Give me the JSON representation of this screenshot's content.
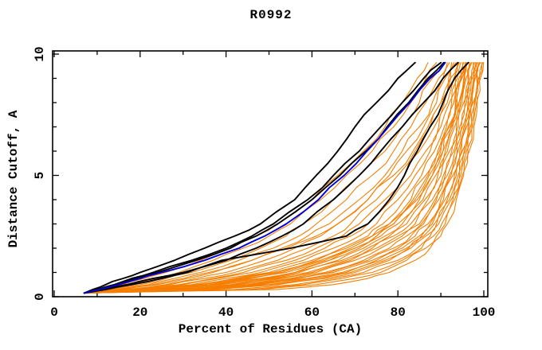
{
  "chart_data": {
    "type": "line",
    "title": "R0992",
    "xlabel": "Percent of Residues (CA)",
    "ylabel": "Distance Cutoff, A",
    "xlim": [
      0,
      101
    ],
    "ylim": [
      0,
      10.1
    ],
    "x_major_ticks": [
      0,
      20,
      40,
      60,
      80,
      100
    ],
    "x_minor_ticks": [
      10,
      30,
      50,
      70,
      90
    ],
    "y_major_ticks": [
      0,
      5,
      10
    ],
    "y_minor_ticks": [
      1,
      2,
      3,
      4,
      6,
      7,
      8,
      9
    ],
    "grid": false,
    "legend": "none",
    "axis_color": "#000000",
    "series_colors": {
      "orange": "#f57e00",
      "black": "#000000",
      "blue": "#0000dd"
    },
    "cutoffs": [
      0.15,
      0.3,
      0.5,
      0.75,
      1,
      1.5,
      2,
      2.5,
      3,
      4,
      5,
      6,
      7,
      8,
      9,
      9.65
    ],
    "series": [
      {
        "group": "orange",
        "values": [
          7,
          11,
          16,
          21,
          26,
          34,
          41,
          47,
          52,
          60,
          66,
          72,
          77,
          81,
          84.5,
          87
        ]
      },
      {
        "group": "orange",
        "values": [
          7,
          12,
          18,
          24,
          29,
          37,
          44,
          50,
          55,
          62,
          68,
          74,
          79,
          83,
          86.5,
          89
        ]
      },
      {
        "group": "orange",
        "values": [
          7,
          13,
          20,
          26,
          32,
          41,
          48,
          54,
          58,
          65,
          71,
          77,
          81,
          85,
          88,
          90.5
        ]
      },
      {
        "group": "orange",
        "values": [
          7,
          14,
          22,
          28,
          34,
          43,
          51,
          57,
          61,
          68,
          74,
          79,
          83,
          86.5,
          89.5,
          91.5
        ]
      },
      {
        "group": "orange",
        "values": [
          7,
          16,
          24,
          31,
          37,
          46,
          53,
          59,
          64,
          71,
          77,
          81,
          85,
          88,
          90.5,
          92
        ]
      },
      {
        "group": "orange",
        "values": [
          7,
          17,
          26,
          33,
          40,
          49,
          56,
          62,
          66,
          73,
          78,
          82,
          86,
          89,
          91,
          92.5
        ]
      },
      {
        "group": "orange",
        "values": [
          7,
          18,
          27,
          35,
          42,
          52,
          59,
          65,
          69,
          75,
          80,
          84,
          87.5,
          90,
          91.8,
          93
        ]
      },
      {
        "group": "orange",
        "values": [
          7,
          19,
          29,
          37,
          44,
          54,
          61,
          67,
          71,
          77,
          81.5,
          85,
          88.5,
          90.8,
          92.3,
          93.5
        ]
      },
      {
        "group": "orange",
        "values": [
          7,
          20,
          30,
          38,
          46,
          56,
          63,
          69,
          73,
          78.5,
          83,
          86.5,
          89.5,
          91.5,
          93,
          94
        ]
      },
      {
        "group": "orange",
        "values": [
          7,
          21,
          32,
          40,
          48,
          58,
          65,
          71,
          75,
          80,
          84,
          87.5,
          90,
          92,
          93.4,
          94.3
        ]
      },
      {
        "group": "orange",
        "values": [
          7,
          22,
          33,
          42,
          50,
          60,
          67,
          73,
          76.5,
          81.5,
          85.5,
          88.5,
          90.8,
          92.5,
          93.8,
          94.6
        ]
      },
      {
        "group": "orange",
        "values": [
          7,
          23,
          34,
          43,
          51,
          61,
          68,
          74,
          78,
          83,
          86.5,
          89.3,
          91.3,
          93,
          94.2,
          95
        ]
      },
      {
        "group": "orange",
        "values": [
          7,
          24,
          36,
          45,
          53,
          63,
          70,
          75,
          79,
          84,
          87.3,
          90,
          92,
          93.5,
          94.6,
          95.3
        ]
      },
      {
        "group": "orange",
        "values": [
          7,
          25,
          37,
          46,
          54,
          64,
          71,
          76,
          80,
          85,
          88,
          90.5,
          92.3,
          93.8,
          94.9,
          95.6
        ]
      },
      {
        "group": "orange",
        "values": [
          7,
          26,
          38,
          48,
          56,
          66,
          72,
          77,
          81,
          85.8,
          88.8,
          91,
          92.8,
          94.2,
          95.3,
          96
        ]
      },
      {
        "group": "orange",
        "values": [
          7,
          27,
          39,
          49,
          57,
          67,
          73,
          78,
          82,
          86.3,
          89.3,
          91.5,
          93.2,
          94.5,
          95.6,
          96.3
        ]
      },
      {
        "group": "orange",
        "values": [
          7,
          28,
          41,
          51,
          59,
          68,
          74,
          79,
          83,
          87,
          90,
          92,
          93.6,
          94.9,
          95.9,
          96.6
        ]
      },
      {
        "group": "orange",
        "values": [
          7,
          29,
          42,
          52,
          60,
          69,
          75,
          80,
          84,
          88,
          90.6,
          92.5,
          94,
          95.3,
          96.3,
          97
        ]
      },
      {
        "group": "orange",
        "values": [
          7,
          30,
          43,
          53,
          61,
          70,
          76,
          81,
          85,
          88.6,
          91,
          93,
          94.4,
          95.6,
          96.5,
          97.2
        ]
      },
      {
        "group": "orange",
        "values": [
          7,
          31,
          45,
          55,
          63,
          72,
          78,
          82,
          85.5,
          89,
          91.5,
          93.3,
          94.8,
          96,
          96.8,
          97.5
        ]
      },
      {
        "group": "orange",
        "values": [
          7,
          32,
          46,
          56,
          64,
          73,
          79,
          83,
          86,
          89.5,
          92,
          93.8,
          95.1,
          96.3,
          97.1,
          97.8
        ]
      },
      {
        "group": "orange",
        "values": [
          7,
          33,
          47,
          57,
          65,
          74,
          80,
          84,
          87,
          90,
          92.4,
          94,
          95.4,
          96.5,
          97.3,
          98
        ]
      },
      {
        "group": "orange",
        "values": [
          7,
          34,
          48,
          59,
          67,
          75,
          81,
          85,
          87.5,
          90.6,
          92.8,
          94.4,
          95.7,
          96.8,
          97.6,
          98.2
        ]
      },
      {
        "group": "orange",
        "values": [
          7,
          35,
          50,
          60,
          68,
          76,
          82,
          85.5,
          88,
          91,
          93.2,
          94.8,
          96,
          97,
          97.8,
          98.5
        ]
      },
      {
        "group": "orange",
        "values": [
          7,
          36,
          51,
          62,
          69,
          77,
          82.5,
          86,
          88.5,
          91.5,
          93.6,
          95,
          96.3,
          97.3,
          98,
          98.7
        ]
      },
      {
        "group": "orange",
        "values": [
          7,
          37,
          52,
          63,
          70,
          78,
          83,
          86.5,
          89,
          92,
          94,
          95.4,
          96.6,
          97.5,
          98.3,
          99
        ]
      },
      {
        "group": "orange",
        "values": [
          7,
          42,
          56,
          65,
          72,
          80,
          84.5,
          87.5,
          89.5,
          92.4,
          94.3,
          95.7,
          96.9,
          97.8,
          98.6,
          99.2
        ]
      },
      {
        "group": "orange",
        "values": [
          7,
          45,
          58,
          67,
          74,
          81,
          85.5,
          88.3,
          90.2,
          92.8,
          94.6,
          96,
          97.2,
          98,
          98.8,
          99.5
        ]
      },
      {
        "group": "orange",
        "values": [
          7,
          48,
          61,
          70,
          76,
          82,
          86.5,
          89,
          91,
          93.2,
          95,
          96.3,
          97.4,
          98.3,
          99,
          99.7
        ]
      },
      {
        "group": "orange",
        "values": [
          7,
          22,
          34,
          44,
          52,
          62,
          69,
          74,
          78,
          83.5,
          87,
          89.7,
          91.7,
          93.4,
          94.7,
          95.8
        ]
      },
      {
        "group": "orange",
        "values": [
          7,
          15,
          23,
          30,
          36,
          46,
          54,
          61,
          66,
          73,
          79,
          83.5,
          87,
          90,
          92.2,
          93.8
        ]
      },
      {
        "group": "orange",
        "values": [
          7,
          30,
          42,
          50,
          56,
          64,
          70,
          75,
          79,
          84.5,
          88,
          90.5,
          92.5,
          94.2,
          95.4,
          96.2
        ]
      },
      {
        "group": "orange",
        "values": [
          7,
          52,
          65,
          73,
          78,
          84,
          87.5,
          90,
          91.5,
          93.6,
          95.3,
          96.6,
          97.7,
          98.5,
          99.2,
          99.9
        ]
      },
      {
        "group": "black",
        "values": [
          7,
          9,
          12,
          16,
          20,
          28,
          35,
          42,
          48,
          56,
          61,
          66,
          70,
          75,
          80,
          84
        ]
      },
      {
        "group": "black",
        "values": [
          7,
          10,
          14,
          18,
          23,
          32,
          40,
          46,
          51,
          59,
          65,
          71,
          76,
          81,
          86,
          90
        ]
      },
      {
        "group": "black",
        "values": [
          7,
          10,
          14.5,
          19,
          24,
          33,
          41,
          47,
          52,
          60,
          66.5,
          72.5,
          77.5,
          82.5,
          87,
          90.7
        ]
      },
      {
        "group": "black",
        "values": [
          7,
          11,
          17,
          23,
          30,
          40,
          47,
          53,
          58,
          65,
          71,
          76,
          81,
          86,
          90.5,
          94
        ]
      },
      {
        "group": "black",
        "values": [
          7,
          12,
          18,
          25,
          31,
          39,
          55,
          68,
          73,
          78,
          81.5,
          84.5,
          87.5,
          90.5,
          93.2,
          96.4
        ]
      },
      {
        "group": "blue",
        "values": [
          7,
          10.5,
          15,
          20,
          25,
          35,
          43,
          49,
          54,
          61.5,
          67.5,
          72.8,
          77.8,
          82.8,
          87.5,
          91
        ]
      }
    ]
  }
}
